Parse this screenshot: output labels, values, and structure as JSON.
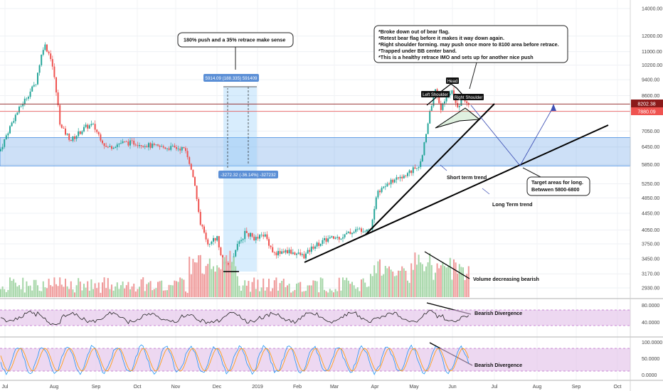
{
  "chart_data": {
    "type": "candlestick",
    "price_axis": {
      "scale": "log",
      "ticks": [
        "14000.00",
        "12000.00",
        "11000.00",
        "10200.00",
        "9400.00",
        "8600.00",
        "7850.00",
        "7050.00",
        "6450.00",
        "5850.00",
        "5250.00",
        "4850.00",
        "4450.00",
        "4050.00",
        "3750.00",
        "3450.00",
        "3170.00",
        "2930.00"
      ],
      "tick_values": [
        14000,
        12000,
        11000,
        10200,
        9400,
        8600,
        7850,
        7050,
        6450,
        5850,
        5250,
        4850,
        4450,
        4050,
        3750,
        3450,
        3170,
        2930
      ],
      "current_price_label": "8202.38",
      "second_price_label": "7880.09",
      "current_price": 8202.38,
      "second_price": 7880.09
    },
    "time_axis": {
      "labels": [
        "Jul",
        "Aug",
        "Sep",
        "Oct",
        "Nov",
        "Dec",
        "2019",
        "Feb",
        "Mar",
        "Apr",
        "May",
        "Jun",
        "Jul",
        "Aug",
        "Sep",
        "Oct"
      ]
    },
    "support_zone": {
      "from": 5800,
      "to": 6800,
      "color": "#4a90e2"
    },
    "rsi": {
      "ticks": [
        "80.0000",
        "40.0000"
      ],
      "tick_values": [
        80,
        40
      ]
    },
    "stoch": {
      "ticks": [
        "100.0000",
        "50.0000",
        "0.0000"
      ],
      "tick_values": [
        100,
        50,
        0
      ]
    },
    "colors": {
      "up": "#26a69a",
      "down": "#ef5350",
      "vol_up": "#a5d6a7",
      "vol_down": "#ef9a9a",
      "zone": "#4a90e2",
      "osc_band": "#e1bee7"
    }
  },
  "annotations": {
    "push_retrace_note": "180% push and a 35% retrace make sense",
    "measure_up": "5914.09 (188.335) 591409",
    "measure_down": "-3272.32 (-36.14%) -327232",
    "main_notes": [
      "*Broke down out of bear flag.",
      "*Retest bear flag before it makes it way down again.",
      "*Right shoulder forming. may push once more to 8100 area before retrace.",
      "*Trapped under BB center band.",
      "*This is a healthy retrace IMO and sets up for another nice push"
    ],
    "head": "Head",
    "left_shoulder": "Left Shoulder",
    "right_shoulder": "Right Shoulder",
    "short_term_trend": "Short term trend",
    "long_term_trend": "Long Term trend",
    "target_line1": "Target areas for long.",
    "target_line2": "Betwwen 5800-6800",
    "volume_note": "Volume decreasing bearish",
    "rsi_divergence": "Bearish Divergence",
    "stoch_divergence": "Bearish Divergence"
  }
}
